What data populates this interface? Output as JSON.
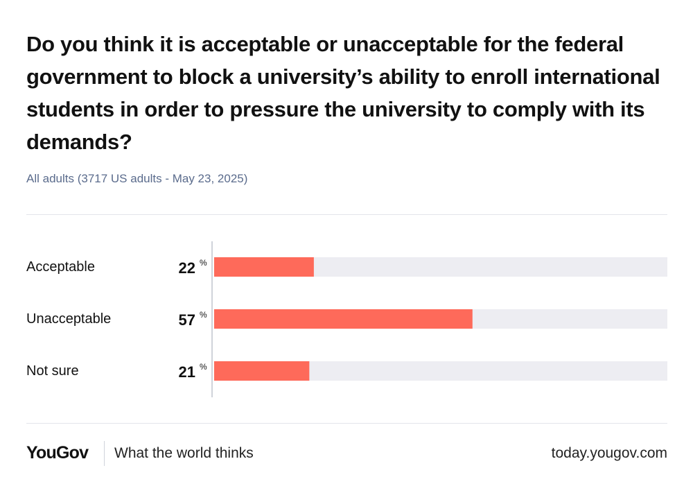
{
  "title": "Do you think it is acceptable or unacceptable for the federal government to block a university’s ability to enroll international students in order to pressure the university to comply with its demands?",
  "subtitle": "All adults (3717 US adults - May 23, 2025)",
  "chart_data": {
    "type": "bar",
    "orientation": "horizontal",
    "categories": [
      "Acceptable",
      "Unacceptable",
      "Not sure"
    ],
    "values": [
      22,
      57,
      21
    ],
    "unit": "%",
    "xlim": [
      0,
      100
    ],
    "bar_color": "#fe6a5a",
    "track_color": "#ededf2",
    "grid": false,
    "legend": "none"
  },
  "footer": {
    "brand": "YouGov",
    "tagline": "What the world thinks",
    "url": "today.yougov.com"
  }
}
